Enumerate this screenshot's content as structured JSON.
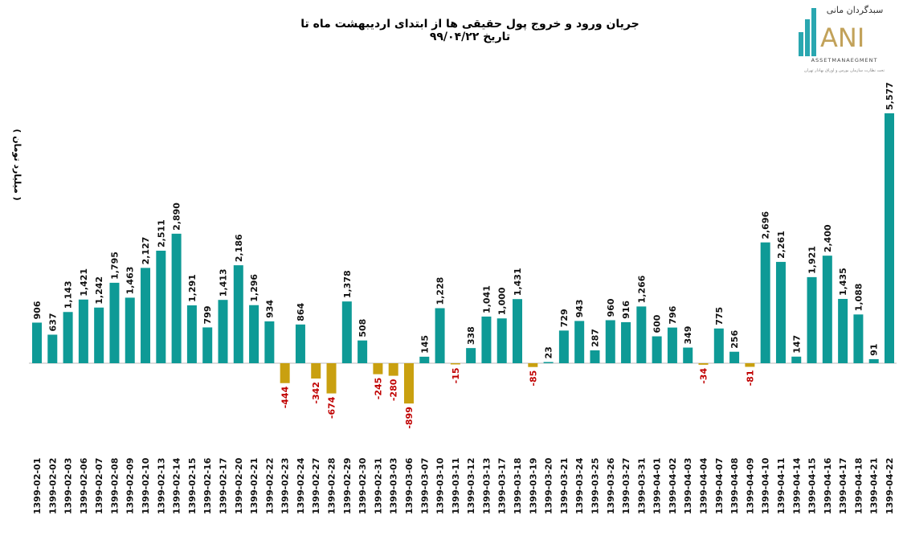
{
  "chart_data": {
    "type": "bar",
    "title": "جریان ورود و خروج پول حقیقی ها از ابتدای اردیبهشت ماه تا تاریخ ۹۹/۰۴/۲۲",
    "ylabel": "( میلیارد تومان )",
    "xlabel": "",
    "grid": false,
    "categories": [
      "1399-02-01",
      "1399-02-02",
      "1399-02-03",
      "1399-02-06",
      "1399-02-07",
      "1399-02-08",
      "1399-02-09",
      "1399-02-10",
      "1399-02-13",
      "1399-02-14",
      "1399-02-15",
      "1399-02-16",
      "1399-02-17",
      "1399-02-20",
      "1399-02-21",
      "1399-02-22",
      "1399-02-23",
      "1399-02-24",
      "1399-02-27",
      "1399-02-28",
      "1399-02-29",
      "1399-02-30",
      "1399-02-31",
      "1399-03-03",
      "1399-03-06",
      "1399-03-07",
      "1399-03-10",
      "1399-03-11",
      "1399-03-12",
      "1399-03-13",
      "1399-03-17",
      "1399-03-18",
      "1399-03-19",
      "1399-03-20",
      "1399-03-21",
      "1399-03-24",
      "1399-03-25",
      "1399-03-26",
      "1399-03-27",
      "1399-03-31",
      "1399-04-01",
      "1399-04-02",
      "1399-04-03",
      "1399-04-04",
      "1399-04-07",
      "1399-04-08",
      "1399-04-09",
      "1399-04-10",
      "1399-04-11",
      "1399-04-14",
      "1399-04-15",
      "1399-04-16",
      "1399-04-17",
      "1399-04-18",
      "1399-04-21",
      "1399-04-22"
    ],
    "values": [
      906,
      637,
      1143,
      1421,
      1242,
      1795,
      1463,
      2127,
      2511,
      2890,
      1291,
      799,
      1413,
      2186,
      1296,
      934,
      -444,
      864,
      -342,
      -674,
      1378,
      508,
      -245,
      -280,
      -899,
      145,
      1228,
      -15,
      338,
      1041,
      1000,
      1431,
      -85,
      23,
      729,
      943,
      287,
      960,
      916,
      1266,
      600,
      796,
      349,
      -34,
      775,
      256,
      -81,
      2696,
      2261,
      147,
      1921,
      2400,
      1435,
      1088,
      91,
      5577
    ],
    "colors": {
      "positive": "#0e9a96",
      "negative": "#c9a010",
      "negative_label": "#c00000",
      "positive_label": "#111111"
    }
  },
  "logo": {
    "brand_fa": "سبدگردان مانی",
    "brand_en": "ANI",
    "subtitle": "ASSETMANAEGMENT",
    "tagline": "تحت نظارت سازمان بورس و اوراق بهادار تهران"
  }
}
